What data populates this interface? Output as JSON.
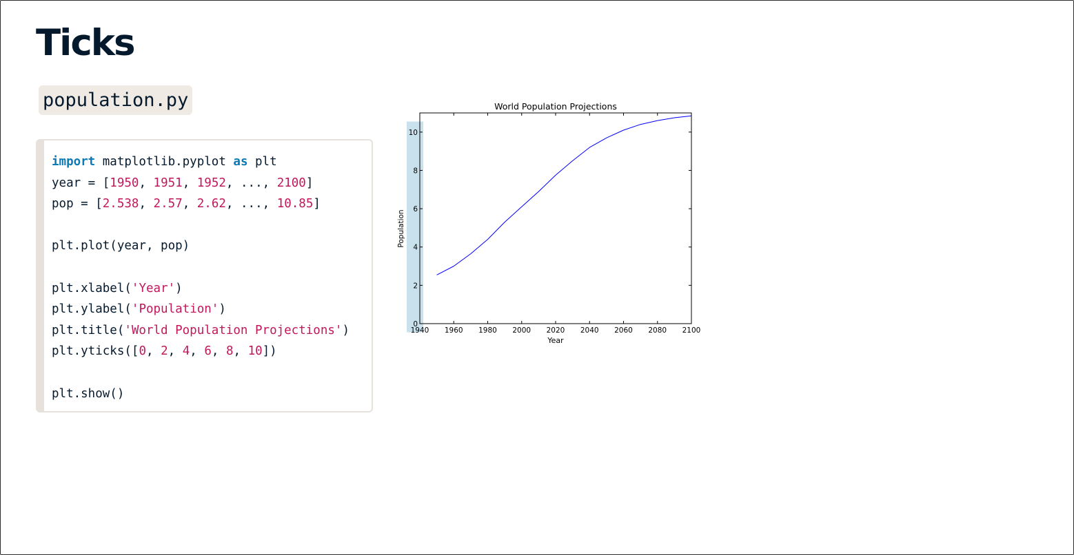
{
  "slide": {
    "title": "Ticks",
    "filename": "population.py"
  },
  "code": {
    "line1": {
      "kw1": "import",
      "mid": " matplotlib.pyplot ",
      "kw2": "as",
      "end": " plt"
    },
    "line2": {
      "start": "year = [",
      "n1": "1950",
      "s1": ", ",
      "n2": "1951",
      "s2": ", ",
      "n3": "1952",
      "s3": ", ..., ",
      "n4": "2100",
      "end": "]"
    },
    "line3": {
      "start": "pop = [",
      "n1": "2.538",
      "s1": ", ",
      "n2": "2.57",
      "s2": ", ",
      "n3": "2.62",
      "s3": ", ..., ",
      "n4": "10.85",
      "end": "]"
    },
    "line4": "plt.plot(year, pop)",
    "line5": {
      "start": "plt.xlabel(",
      "str": "'Year'",
      "end": ")"
    },
    "line6": {
      "start": "plt.ylabel(",
      "str": "'Population'",
      "end": ")"
    },
    "line7": {
      "start": "plt.title(",
      "str": "'World Population Projections'",
      "end": ")"
    },
    "line8": {
      "start": "plt.yticks([",
      "n1": "0",
      "s1": ", ",
      "n2": "2",
      "s2": ", ",
      "n3": "4",
      "s3": ", ",
      "n4": "6",
      "s4": ", ",
      "n5": "8",
      "s5": ", ",
      "n6": "10",
      "end": "])"
    },
    "line9": "plt.show()"
  },
  "chart_data": {
    "type": "line",
    "title": "World Population Projections",
    "xlabel": "Year",
    "ylabel": "Population",
    "xlim": [
      1940,
      2100
    ],
    "ylim": [
      0,
      11
    ],
    "xticks": [
      1940,
      1960,
      1980,
      2000,
      2020,
      2040,
      2060,
      2080,
      2100
    ],
    "yticks": [
      0,
      2,
      4,
      6,
      8,
      10
    ],
    "grid": false,
    "highlight": "y-axis tick labels",
    "line_color": "#0000ff",
    "highlight_color": "#c6dfeb",
    "series": [
      {
        "x": [
          1950,
          1960,
          1970,
          1980,
          1990,
          2000,
          2010,
          2020,
          2030,
          2040,
          2050,
          2060,
          2070,
          2080,
          2090,
          2100
        ],
        "y": [
          2.54,
          3.0,
          3.65,
          4.4,
          5.3,
          6.1,
          6.9,
          7.75,
          8.5,
          9.2,
          9.7,
          10.1,
          10.4,
          10.6,
          10.75,
          10.85
        ]
      }
    ]
  }
}
